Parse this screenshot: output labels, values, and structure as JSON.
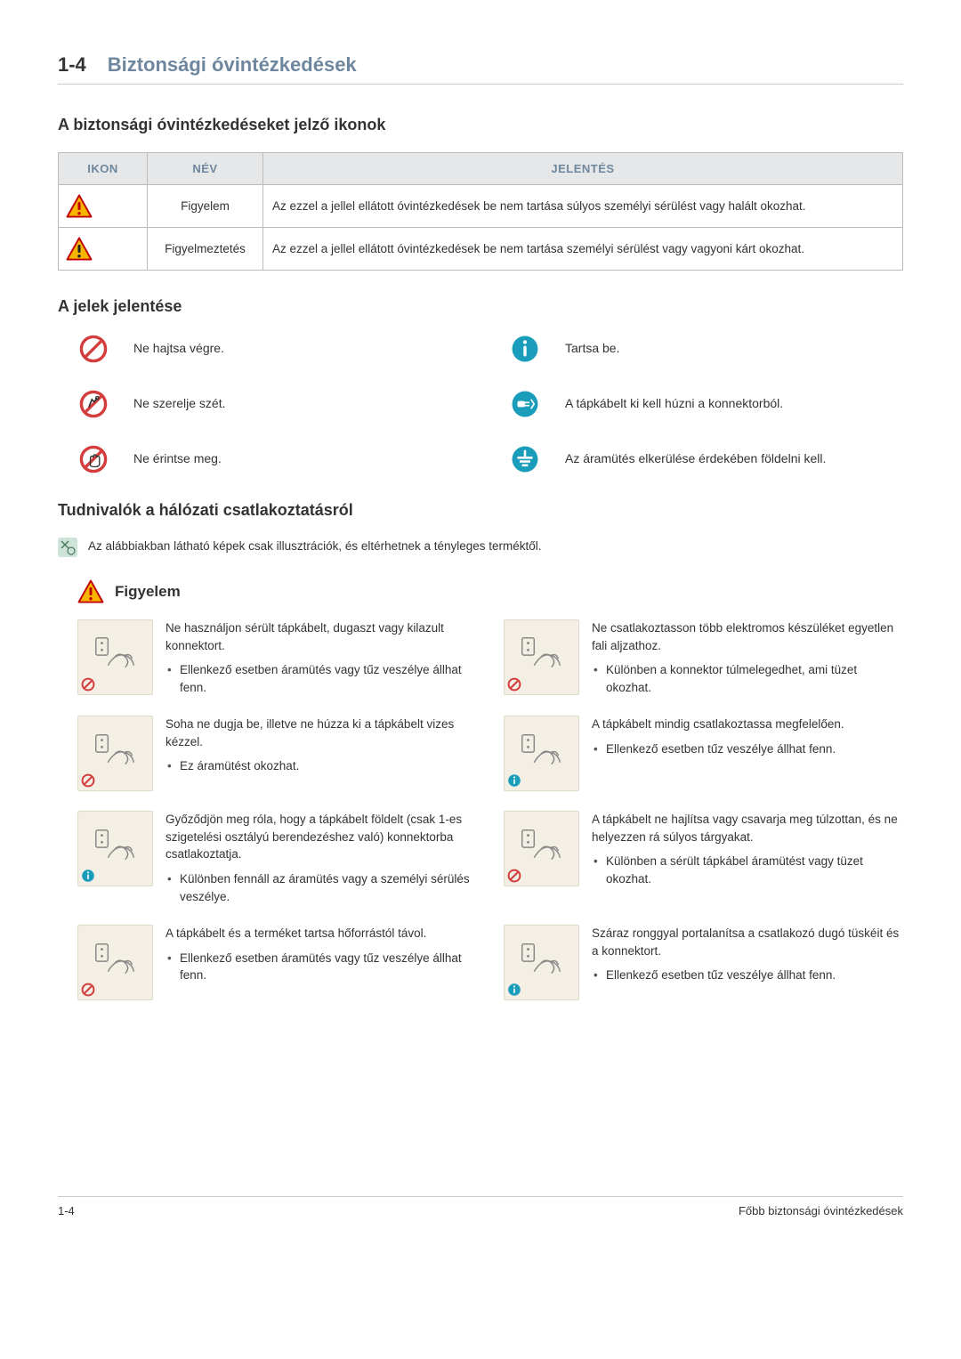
{
  "header": {
    "section_number": "1-4",
    "title": "Biztonsági óvintézkedések"
  },
  "icons_section": {
    "heading": "A biztonsági óvintézkedéseket jelző ikonok",
    "table": {
      "headers": {
        "icon": "IKON",
        "name": "NÉV",
        "meaning": "JELENTÉS"
      },
      "rows": [
        {
          "name": "Figyelem",
          "meaning": "Az ezzel a jellel ellátott óvintézkedések be nem tartása súlyos személyi sérülést vagy halált okozhat.",
          "icon_colors": {
            "fill": "#f7b500",
            "stroke": "#c00000",
            "exclaim": "#c00000"
          }
        },
        {
          "name": "Figyelmeztetés",
          "meaning": "Az ezzel a jellel ellátott óvintézkedések be nem tartása személyi sérülést vagy vagyoni kárt okozhat.",
          "icon_colors": {
            "fill": "#f7b500",
            "stroke": "#c00000",
            "exclaim": "#222222"
          }
        }
      ]
    }
  },
  "signs_section": {
    "heading": "A jelek jelentése",
    "items": [
      {
        "label": "Ne hajtsa végre.",
        "icon": "prohibit",
        "color": "#d43d3d"
      },
      {
        "label": "Tartsa be.",
        "icon": "info",
        "color": "#1a9dba"
      },
      {
        "label": "Ne szerelje szét.",
        "icon": "no-disassemble",
        "color": "#d43d3d"
      },
      {
        "label": "A tápkábelt ki kell húzni a konnektorból.",
        "icon": "unplug",
        "color": "#1a9dba"
      },
      {
        "label": "Ne érintse meg.",
        "icon": "no-touch",
        "color": "#d43d3d"
      },
      {
        "label": "Az áramütés elkerülése érdekében földelni kell.",
        "icon": "ground",
        "color": "#1a9dba"
      }
    ]
  },
  "power_section": {
    "heading": "Tudnivalók a hálózati csatlakoztatásról",
    "note": "Az alábbiakban látható képek csak illusztrációk, és eltérhetnek a tényleges terméktől.",
    "warning_label": "Figyelem",
    "warning_icon_colors": {
      "fill": "#f7b500",
      "stroke": "#c00000",
      "exclaim": "#c00000"
    },
    "items": [
      {
        "text": "Ne használjon sérült tápkábelt, dugaszt vagy kilazult konnektort.",
        "bullets": [
          "Ellenkező esetben áramütés vagy tűz veszélye állhat fenn."
        ],
        "corner": "prohibit",
        "corner_color": "#d43d3d"
      },
      {
        "text": "Ne csatlakoztasson több elektromos készüléket egyetlen fali aljzathoz.",
        "bullets": [
          "Különben a konnektor túlmelegedhet, ami tüzet okozhat."
        ],
        "corner": "prohibit",
        "corner_color": "#d43d3d"
      },
      {
        "text": "Soha ne dugja be, illetve ne húzza ki a tápkábelt vizes kézzel.",
        "bullets": [
          "Ez áramütést okozhat."
        ],
        "corner": "prohibit",
        "corner_color": "#d43d3d"
      },
      {
        "text": "A tápkábelt mindig csatlakoztassa megfelelően.",
        "bullets": [
          "Ellenkező esetben tűz veszélye állhat fenn."
        ],
        "corner": "info",
        "corner_color": "#1a9dba"
      },
      {
        "text": "Győződjön meg róla, hogy a tápkábelt földelt (csak 1-es szigetelési osztályú berendezéshez való) konnektorba csatlakoztatja.",
        "bullets": [
          "Különben fennáll az áramütés vagy a személyi sérülés veszélye."
        ],
        "corner": "info",
        "corner_color": "#1a9dba"
      },
      {
        "text": "A tápkábelt ne hajlítsa vagy csavarja meg túlzottan, és ne helyezzen rá súlyos tárgyakat.",
        "bullets": [
          "Különben a sérült tápkábel áramütést vagy tüzet okozhat."
        ],
        "corner": "prohibit",
        "corner_color": "#d43d3d"
      },
      {
        "text": "A tápkábelt és a terméket tartsa hőforrástól távol.",
        "bullets": [
          "Ellenkező esetben áramütés vagy tűz veszélye állhat fenn."
        ],
        "corner": "prohibit",
        "corner_color": "#d43d3d"
      },
      {
        "text": "Száraz ronggyal portalanítsa a csatlakozó dugó tüskéit és a konnektort.",
        "bullets": [
          "Ellenkező esetben tűz veszélye állhat fenn."
        ],
        "corner": "info",
        "corner_color": "#1a9dba"
      }
    ]
  },
  "footer": {
    "left": "1-4",
    "right": "Főbb biztonsági óvintézkedések"
  },
  "colors": {
    "heading_accent": "#6f879e",
    "table_header_bg": "#e5e7e9",
    "illustration_bg": "#f3efe4",
    "note_bg": "#cfe4d8"
  }
}
